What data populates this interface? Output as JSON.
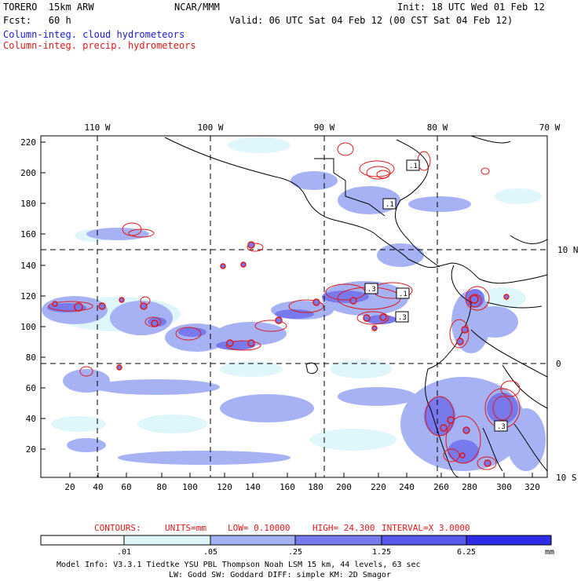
{
  "header": {
    "model": "TORERO  15km ARW",
    "org": "NCAR/MMM",
    "init": "Init: 18 UTC Wed 01 Feb 12",
    "fcst": "Fcst:   60 h",
    "valid": "Valid: 06 UTC Sat 04 Feb 12 (00 CST Sat 04 Feb 12)",
    "field_blue": "Column-integ. cloud hydrometeors",
    "field_red": "Column-integ. precip. hydrometeors"
  },
  "map": {
    "top_lon_labels": [
      "110 W",
      "100 W",
      "90 W",
      "80 W",
      "70 W"
    ],
    "right_lat_labels": [
      "10 N",
      "0",
      "10 S"
    ],
    "y_ticks": [
      "220",
      "200",
      "180",
      "160",
      "140",
      "120",
      "100",
      "80",
      "60",
      "40",
      "20"
    ],
    "x_ticks": [
      "20",
      "40",
      "60",
      "80",
      "100",
      "120",
      "140",
      "160",
      "180",
      "200",
      "220",
      "240",
      "260",
      "280",
      "300",
      "320"
    ],
    "contour_labels": [
      ".1",
      ".1",
      ".3",
      ".1",
      ".3",
      ".3"
    ]
  },
  "contour_info": {
    "contours": "CONTOURS:",
    "units": "UNITS=mm",
    "low": "LOW= 0.10000",
    "high": "HIGH=  24.300",
    "interval": "INTERVAL=X  3.0000"
  },
  "colorbar": {
    "ticks": [
      ".01",
      ".05",
      ".25",
      "1.25",
      "6.25"
    ],
    "unit": "mm",
    "colors": [
      "#ffffff",
      "#dff6fb",
      "#a7b2f4",
      "#7879ec",
      "#5a58ea",
      "#2d2be6"
    ]
  },
  "footer": {
    "line1": "Model Info: V3.3.1   Tiedtke YSU PBL  Thompson   Noah LSM  15 km,   44 levels,   63 sec",
    "line2": "LW: Godd SW: Goddard DIFF: simple KM: 2D Smagor"
  },
  "colors": {
    "cloud_label": "#1a1ad8",
    "precip": "#e01818",
    "light_cloud": "#dff6fb",
    "mid_cloud": "#a7b2f4",
    "deep_cloud": "#7879ec"
  }
}
